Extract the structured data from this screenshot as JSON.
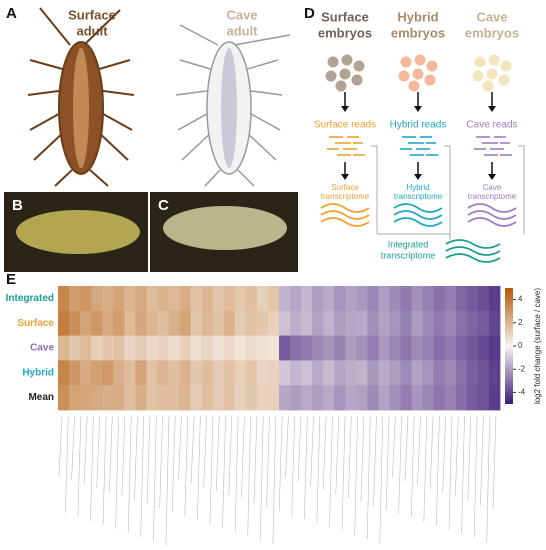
{
  "panel_a": {
    "letter": "A",
    "surface_label": [
      "Surface",
      "adult"
    ],
    "cave_label": [
      "Cave",
      "adult"
    ]
  },
  "panel_b": {
    "letter": "B"
  },
  "panel_c": {
    "letter": "C"
  },
  "panel_d": {
    "letter": "D",
    "columns": [
      {
        "header": [
          "Surface",
          "embryos"
        ],
        "reads": "Surface reads",
        "transcriptome": [
          "Surface",
          "transcriptome"
        ],
        "color": "#f0a030",
        "header_color": "#6e6259",
        "dot_color": "#b3a394"
      },
      {
        "header": [
          "Hybrid",
          "embryos"
        ],
        "reads": "Hybrid reads",
        "transcriptome": [
          "Hybrid",
          "transcriptome"
        ],
        "color": "#22a7c9",
        "header_color": "#a88c6c",
        "dot_color": "#f5b89a"
      },
      {
        "header": [
          "Cave",
          "embryos"
        ],
        "reads": "Cave reads",
        "transcriptome": [
          "Cave",
          "transcriptome"
        ],
        "color": "#9a7ec4",
        "header_color": "#c4b393",
        "dot_color": "#f2e5bd"
      }
    ],
    "integrated": [
      "Integrated",
      "transcriptome"
    ],
    "integrated_color": "#1a9e8e"
  },
  "panel_e": {
    "letter": "E"
  },
  "chart_data": {
    "type": "heatmap",
    "rows": [
      "Integrated",
      "Surface",
      "Cave",
      "Hybrid",
      "Mean"
    ],
    "row_colors": [
      "#1a9e8e",
      "#f0a030",
      "#8a6fb0",
      "#22a7c9",
      "#222222"
    ],
    "values": [
      [
        3.5,
        2.8,
        3.0,
        2.5,
        2.2,
        2.6,
        2.0,
        2.4,
        1.8,
        2.1,
        1.9,
        2.3,
        1.6,
        2.0,
        1.5,
        1.8,
        1.4,
        1.7,
        1.2,
        1.5,
        -1.5,
        -1.8,
        -1.4,
        -2.0,
        -1.7,
        -2.2,
        -1.9,
        -2.1,
        -2.5,
        -2.0,
        -2.4,
        -2.8,
        -2.3,
        -2.6,
        -3.0,
        -2.7,
        -3.2,
        -3.5,
        -3.8,
        -4.2
      ],
      [
        3.8,
        3.2,
        2.6,
        3.0,
        2.4,
        2.8,
        1.9,
        2.5,
        2.0,
        1.7,
        2.2,
        2.6,
        1.5,
        1.9,
        1.6,
        2.1,
        1.3,
        1.6,
        1.4,
        1.2,
        -1.2,
        -1.6,
        -1.3,
        -1.9,
        -1.5,
        -2.0,
        -1.8,
        -1.7,
        -2.3,
        -1.9,
        -2.2,
        -2.6,
        -2.0,
        -2.4,
        -2.8,
        -2.5,
        -3.0,
        -3.3,
        -3.5,
        -4.0
      ],
      [
        2.0,
        1.5,
        1.8,
        1.2,
        1.4,
        1.6,
        1.0,
        1.3,
        0.9,
        1.1,
        0.8,
        1.2,
        0.7,
        1.0,
        0.6,
        0.9,
        0.5,
        0.8,
        0.6,
        0.5,
        -3.5,
        -3.0,
        -2.8,
        -2.5,
        -2.2,
        -2.6,
        -2.0,
        -2.3,
        -2.7,
        -2.1,
        -2.5,
        -2.9,
        -2.4,
        -2.6,
        -3.1,
        -2.8,
        -3.3,
        -3.6,
        -3.9,
        -4.3
      ],
      [
        3.6,
        3.0,
        2.4,
        2.7,
        2.9,
        2.2,
        1.8,
        2.6,
        1.6,
        2.0,
        1.7,
        2.1,
        1.4,
        1.8,
        1.3,
        1.6,
        1.2,
        1.5,
        1.0,
        1.1,
        -1.0,
        -1.4,
        -1.2,
        -1.7,
        -1.3,
        -1.8,
        -1.6,
        -1.5,
        -2.1,
        -1.7,
        -2.0,
        -2.4,
        -1.9,
        -2.2,
        -2.7,
        -2.4,
        -3.0,
        -3.4,
        -3.7,
        -4.1
      ],
      [
        3.2,
        2.6,
        2.5,
        2.4,
        2.2,
        2.3,
        1.7,
        2.2,
        1.6,
        1.7,
        1.7,
        2.0,
        1.3,
        1.7,
        1.3,
        1.6,
        1.1,
        1.4,
        1.1,
        1.1,
        -1.8,
        -2.0,
        -1.7,
        -2.0,
        -1.7,
        -2.2,
        -1.8,
        -1.9,
        -2.4,
        -1.9,
        -2.3,
        -2.7,
        -2.2,
        -2.5,
        -2.9,
        -2.6,
        -3.1,
        -3.5,
        -3.7,
        -4.2
      ]
    ],
    "colormap": {
      "low": "#3f1a7a",
      "mid": "#f7f4f0",
      "high": "#b35806"
    },
    "zlim": [
      -5,
      5
    ],
    "zticks": [
      4,
      2,
      0,
      -2,
      -4
    ],
    "colorbar_label": "log2 fold change (surface / cave)"
  }
}
